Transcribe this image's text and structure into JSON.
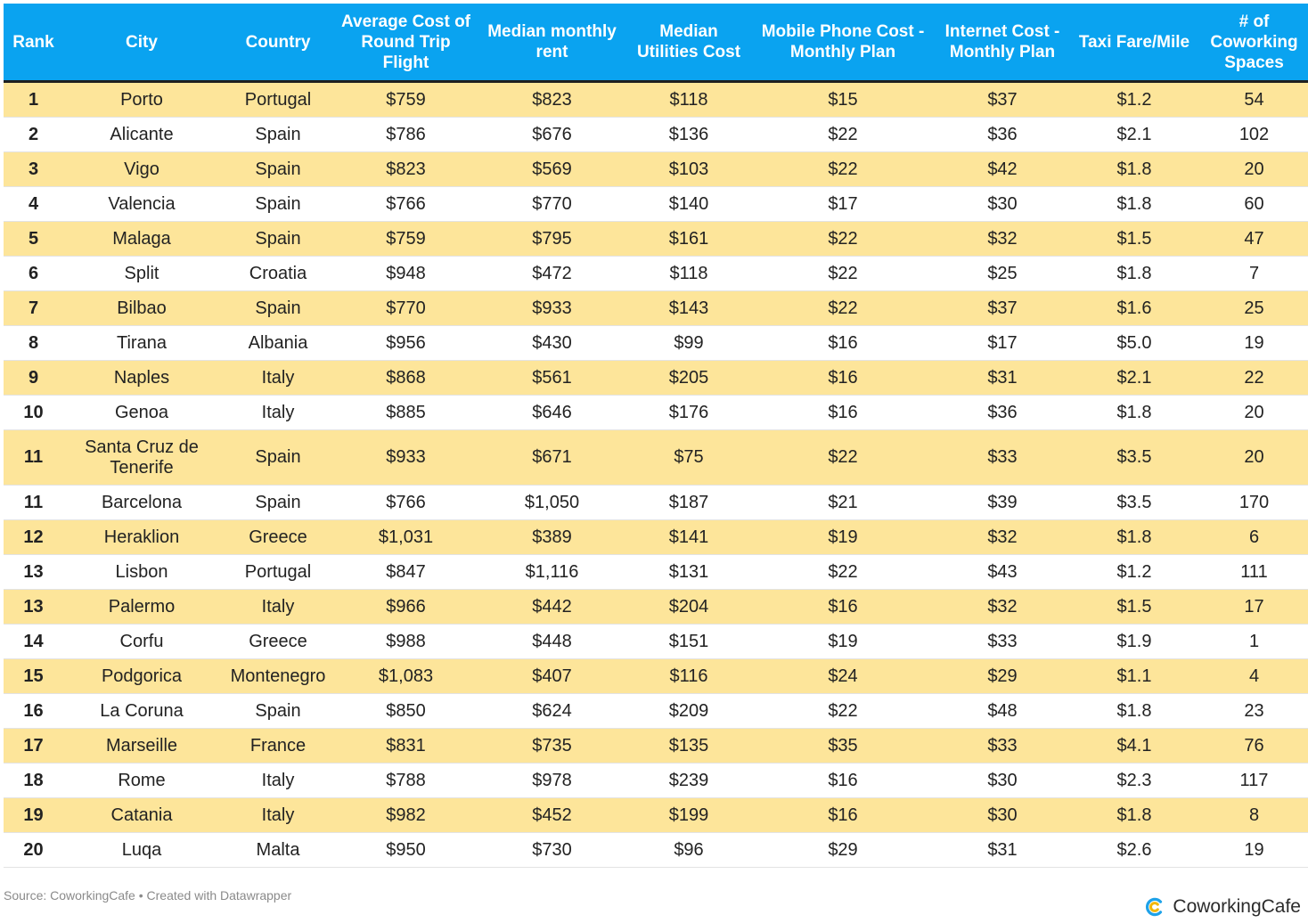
{
  "chart_data": {
    "type": "table",
    "columns": [
      "Rank",
      "City",
      "Country",
      "Average Cost of Round Trip Flight",
      "Median monthly rent",
      "Median Utilities Cost",
      "Mobile Phone Cost - Monthly Plan",
      "Internet Cost - Monthly Plan",
      "Taxi Fare/Mile",
      "# of Coworking Spaces"
    ],
    "rows": [
      [
        "1",
        "Porto",
        "Portugal",
        "$759",
        "$823",
        "$118",
        "$15",
        "$37",
        "$1.2",
        "54"
      ],
      [
        "2",
        "Alicante",
        "Spain",
        "$786",
        "$676",
        "$136",
        "$22",
        "$36",
        "$2.1",
        "102"
      ],
      [
        "3",
        "Vigo",
        "Spain",
        "$823",
        "$569",
        "$103",
        "$22",
        "$42",
        "$1.8",
        "20"
      ],
      [
        "4",
        "Valencia",
        "Spain",
        "$766",
        "$770",
        "$140",
        "$17",
        "$30",
        "$1.8",
        "60"
      ],
      [
        "5",
        "Malaga",
        "Spain",
        "$759",
        "$795",
        "$161",
        "$22",
        "$32",
        "$1.5",
        "47"
      ],
      [
        "6",
        "Split",
        "Croatia",
        "$948",
        "$472",
        "$118",
        "$22",
        "$25",
        "$1.8",
        "7"
      ],
      [
        "7",
        "Bilbao",
        "Spain",
        "$770",
        "$933",
        "$143",
        "$22",
        "$37",
        "$1.6",
        "25"
      ],
      [
        "8",
        "Tirana",
        "Albania",
        "$956",
        "$430",
        "$99",
        "$16",
        "$17",
        "$5.0",
        "19"
      ],
      [
        "9",
        "Naples",
        "Italy",
        "$868",
        "$561",
        "$205",
        "$16",
        "$31",
        "$2.1",
        "22"
      ],
      [
        "10",
        "Genoa",
        "Italy",
        "$885",
        "$646",
        "$176",
        "$16",
        "$36",
        "$1.8",
        "20"
      ],
      [
        "11",
        "Santa Cruz de Tenerife",
        "Spain",
        "$933",
        "$671",
        "$75",
        "$22",
        "$33",
        "$3.5",
        "20"
      ],
      [
        "11",
        "Barcelona",
        "Spain",
        "$766",
        "$1,050",
        "$187",
        "$21",
        "$39",
        "$3.5",
        "170"
      ],
      [
        "12",
        "Heraklion",
        "Greece",
        "$1,031",
        "$389",
        "$141",
        "$19",
        "$32",
        "$1.8",
        "6"
      ],
      [
        "13",
        "Lisbon",
        "Portugal",
        "$847",
        "$1,116",
        "$131",
        "$22",
        "$43",
        "$1.2",
        "111"
      ],
      [
        "13",
        "Palermo",
        "Italy",
        "$966",
        "$442",
        "$204",
        "$16",
        "$32",
        "$1.5",
        "17"
      ],
      [
        "14",
        "Corfu",
        "Greece",
        "$988",
        "$448",
        "$151",
        "$19",
        "$33",
        "$1.9",
        "1"
      ],
      [
        "15",
        "Podgorica",
        "Montenegro",
        "$1,083",
        "$407",
        "$116",
        "$24",
        "$29",
        "$1.1",
        "4"
      ],
      [
        "16",
        "La Coruna",
        "Spain",
        "$850",
        "$624",
        "$209",
        "$22",
        "$48",
        "$1.8",
        "23"
      ],
      [
        "17",
        "Marseille",
        "France",
        "$831",
        "$735",
        "$135",
        "$35",
        "$33",
        "$4.1",
        "76"
      ],
      [
        "18",
        "Rome",
        "Italy",
        "$788",
        "$978",
        "$239",
        "$16",
        "$30",
        "$2.3",
        "117"
      ],
      [
        "19",
        "Catania",
        "Italy",
        "$982",
        "$452",
        "$199",
        "$16",
        "$30",
        "$1.8",
        "8"
      ],
      [
        "20",
        "Luqa",
        "Malta",
        "$950",
        "$730",
        "$96",
        "$29",
        "$31",
        "$2.6",
        "19"
      ]
    ]
  },
  "footer": {
    "source": "Source: CoworkingCafe • Created with Datawrapper",
    "brand_name": "CoworkingCafe"
  },
  "colors": {
    "header_bg": "#0aa3f0",
    "header_text": "#ffffff",
    "row_highlight": "#fde59a",
    "row_plain": "#ffffff",
    "brand_accent": "#1fa2e8"
  },
  "icons": {
    "brand_logo": "coworkingcafe-logo-icon"
  }
}
